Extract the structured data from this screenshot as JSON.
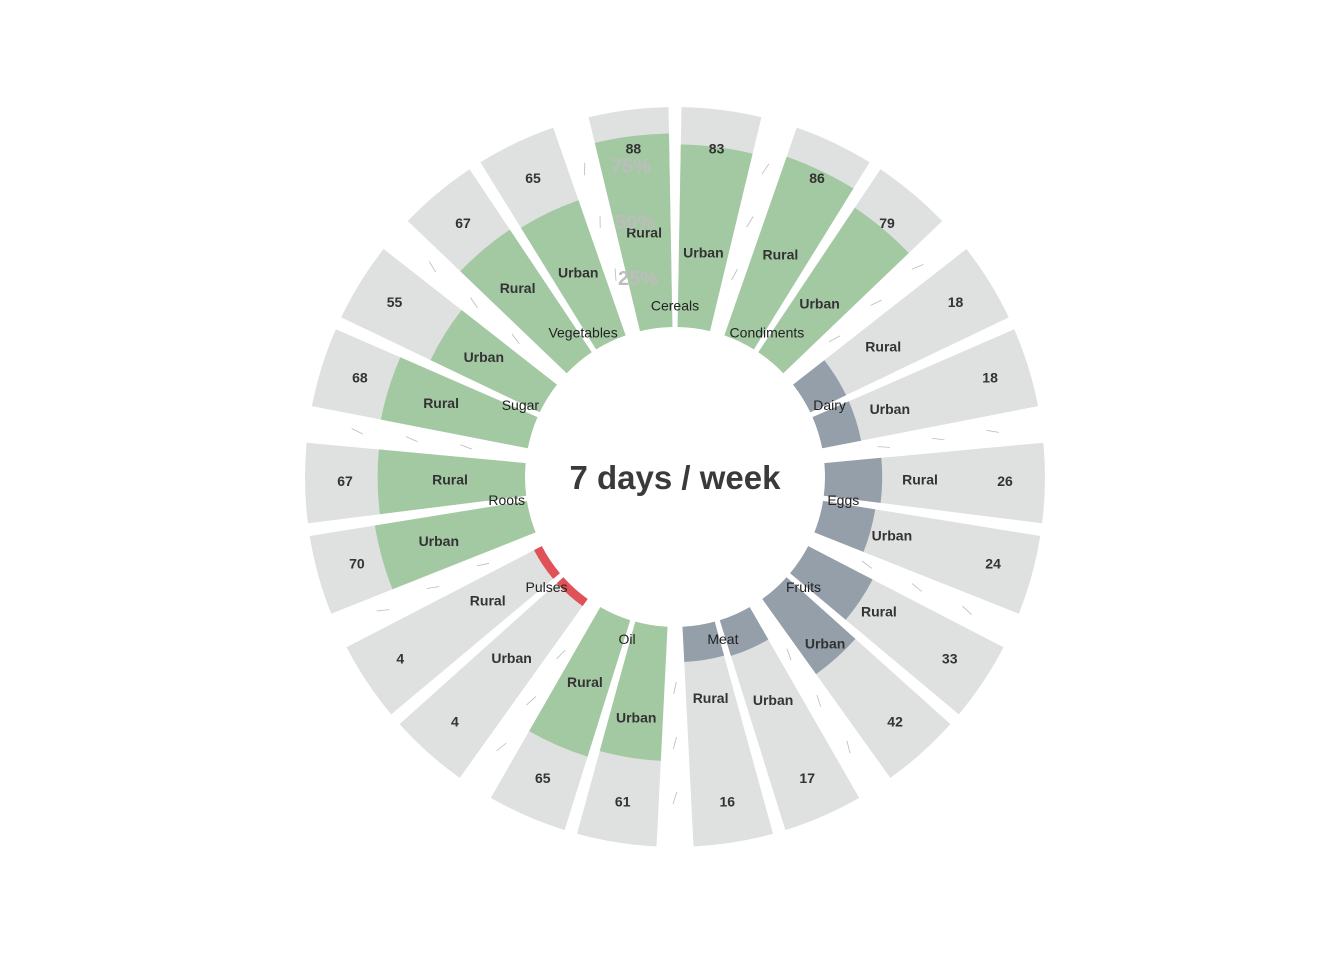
{
  "chart_data": {
    "type": "bar",
    "subtype": "circular-stacked-percent",
    "title": "7 days / week",
    "scale_labels": [
      "25%",
      "50%",
      "75%"
    ],
    "ylim": [
      0,
      100
    ],
    "colors": {
      "background": "#dfe0e0",
      "high": "#a3c9a2",
      "low": "#949fa9",
      "very_low": "#e05258",
      "tick": "#bbbbbb"
    },
    "categories": [
      {
        "name": "Cereals",
        "groups": [
          {
            "name": "Rural",
            "value": 88
          },
          {
            "name": "Urban",
            "value": 83
          }
        ]
      },
      {
        "name": "Condiments",
        "groups": [
          {
            "name": "Rural",
            "value": 86
          },
          {
            "name": "Urban",
            "value": 79
          }
        ]
      },
      {
        "name": "Dairy",
        "groups": [
          {
            "name": "Rural",
            "value": 18
          },
          {
            "name": "Urban",
            "value": 18
          }
        ]
      },
      {
        "name": "Eggs",
        "groups": [
          {
            "name": "Rural",
            "value": 26
          },
          {
            "name": "Urban",
            "value": 24
          }
        ]
      },
      {
        "name": "Fruits",
        "groups": [
          {
            "name": "Rural",
            "value": 33
          },
          {
            "name": "Urban",
            "value": 42
          }
        ]
      },
      {
        "name": "Meat",
        "groups": [
          {
            "name": "Urban",
            "value": 17
          },
          {
            "name": "Rural",
            "value": 16
          }
        ]
      },
      {
        "name": "Oil",
        "groups": [
          {
            "name": "Urban",
            "value": 61
          },
          {
            "name": "Rural",
            "value": 65
          }
        ]
      },
      {
        "name": "Pulses",
        "groups": [
          {
            "name": "Urban",
            "value": 4
          },
          {
            "name": "Rural",
            "value": 4
          }
        ]
      },
      {
        "name": "Roots",
        "groups": [
          {
            "name": "Urban",
            "value": 70
          },
          {
            "name": "Rural",
            "value": 67
          }
        ]
      },
      {
        "name": "Sugar",
        "groups": [
          {
            "name": "Rural",
            "value": 68
          },
          {
            "name": "Urban",
            "value": 55
          }
        ]
      },
      {
        "name": "Vegetables",
        "groups": [
          {
            "name": "Rural",
            "value": 67
          },
          {
            "name": "Urban",
            "value": 65
          }
        ]
      }
    ]
  }
}
